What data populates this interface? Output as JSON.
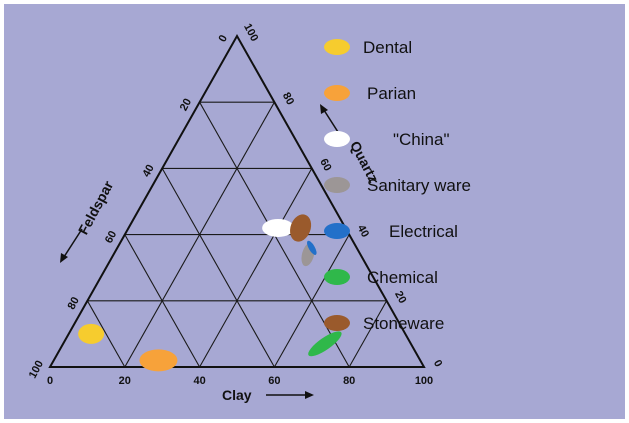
{
  "chart_data": {
    "type": "ternary",
    "title": "",
    "axes": {
      "clay": {
        "label": "Clay",
        "ticks": [
          "0",
          "20",
          "40",
          "60",
          "80",
          "100"
        ]
      },
      "quartz": {
        "label": "Quartz",
        "ticks": [
          "0",
          "20",
          "40",
          "60",
          "80",
          "100"
        ]
      },
      "feldspar": {
        "label": "Feldspar",
        "ticks": [
          "0",
          "20",
          "40",
          "60",
          "80",
          "100"
        ]
      }
    },
    "grid": true,
    "legend_position": "right",
    "series": [
      {
        "name": "Dental",
        "color": "#f6cc2e",
        "region": {
          "clay": 6,
          "quartz": 10,
          "feldspar": 84
        }
      },
      {
        "name": "Parian",
        "color": "#f7a23a",
        "region": {
          "clay": 28,
          "quartz": 2,
          "feldspar": 70
        }
      },
      {
        "name": "\"China\"",
        "color": "#ffffff",
        "region": {
          "clay": 40,
          "quartz": 42,
          "feldspar": 18
        }
      },
      {
        "name": "Sanitary ware",
        "color": "#9c9696",
        "region": {
          "clay": 52,
          "quartz": 34,
          "feldspar": 14
        }
      },
      {
        "name": "Electrical",
        "color": "#2370c9",
        "region": {
          "clay": 52,
          "quartz": 36,
          "feldspar": 12
        }
      },
      {
        "name": "Chemical",
        "color": "#2fb84a",
        "region": {
          "clay": 70,
          "quartz": 7,
          "feldspar": 23
        }
      },
      {
        "name": "Stoneware",
        "color": "#9a5a2c",
        "region": {
          "clay": 46,
          "quartz": 42,
          "feldspar": 12
        }
      }
    ]
  }
}
